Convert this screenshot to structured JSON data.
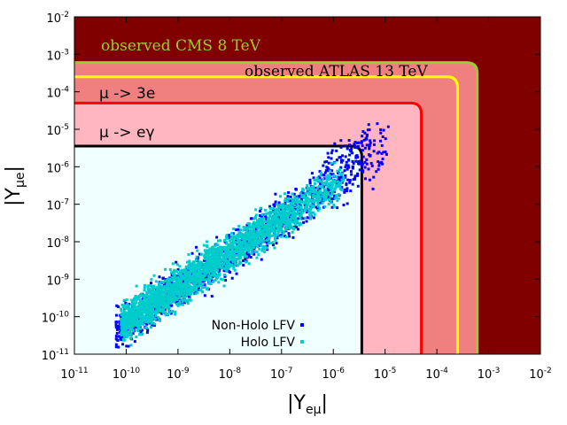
{
  "chart_data": {
    "type": "scatter",
    "xlabel": {
      "main": "|Y",
      "sub": "eμ",
      "end": "|"
    },
    "ylabel": {
      "main": "|Y",
      "sub": "μe",
      "end": "|"
    },
    "xlim_log10": [
      -11,
      -2
    ],
    "ylim_log10": [
      -11,
      -2
    ],
    "x_ticks": [
      {
        "base": "10",
        "exp": "-11"
      },
      {
        "base": "10",
        "exp": "-10"
      },
      {
        "base": "10",
        "exp": "-9"
      },
      {
        "base": "10",
        "exp": "-8"
      },
      {
        "base": "10",
        "exp": "-7"
      },
      {
        "base": "10",
        "exp": "-6"
      },
      {
        "base": "10",
        "exp": "-5"
      },
      {
        "base": "10",
        "exp": "-4"
      },
      {
        "base": "10",
        "exp": "-3"
      },
      {
        "base": "10",
        "exp": "-2"
      }
    ],
    "y_ticks": [
      {
        "base": "10",
        "exp": "-11"
      },
      {
        "base": "10",
        "exp": "-10"
      },
      {
        "base": "10",
        "exp": "-9"
      },
      {
        "base": "10",
        "exp": "-8"
      },
      {
        "base": "10",
        "exp": "-7"
      },
      {
        "base": "10",
        "exp": "-6"
      },
      {
        "base": "10",
        "exp": "-5"
      },
      {
        "base": "10",
        "exp": "-4"
      },
      {
        "base": "10",
        "exp": "-3"
      },
      {
        "base": "10",
        "exp": "-2"
      }
    ],
    "plot_background": "#800000",
    "excluded_regions": [
      {
        "name": "observed CMS 8 TeV",
        "boundary_log10": -3.22,
        "fill": "#800000",
        "line": "#9acd32"
      },
      {
        "name": "observed ATLAS 13 TeV",
        "boundary_log10": -3.6,
        "fill": "#f08080",
        "line": "#ffff00"
      },
      {
        "name": "μ -> 3e",
        "boundary_log10": -4.3,
        "fill": "#f08080",
        "line": "#ff0000"
      },
      {
        "name": "μ -> eγ",
        "boundary_log10": -5.45,
        "fill": "#ffb6c1",
        "line": "#000000"
      }
    ],
    "allowed_region_fill": "#f0ffff",
    "annotations": [
      {
        "text": "observed CMS 8 TeV",
        "color": "#9acd32",
        "font": "serif"
      },
      {
        "text": "observed ATLAS 13 TeV",
        "color": "#000000",
        "font": "serif"
      },
      {
        "text": "μ -> 3e",
        "color": "#000000",
        "font": "sans"
      },
      {
        "text": "μ -> eγ",
        "color": "#000000",
        "font": "sans"
      }
    ],
    "series": [
      {
        "name": "Non-Holo LFV",
        "color": "#0000ff",
        "marker": "square",
        "band_log10": {
          "x_range": [
            -10.2,
            -4.9
          ],
          "slope": 0.93,
          "intercept": -0.9,
          "width": 0.6
        }
      },
      {
        "name": "Holo LFV",
        "color": "#00cccc",
        "marker": "square",
        "band_log10": {
          "x_range": [
            -10.1,
            -5.8
          ],
          "slope": 0.9,
          "intercept": -1.1,
          "width": 0.55
        }
      }
    ],
    "legend": {
      "placement": "bottom-center"
    }
  }
}
